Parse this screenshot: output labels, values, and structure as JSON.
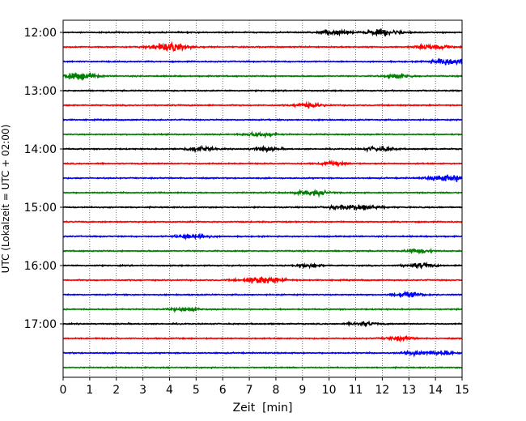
{
  "chart_data": {
    "type": "line",
    "xlabel": "Zeit  [min]",
    "ylabel": "UTC (Lokalzeit = UTC + 02:00)",
    "xlim": [
      0,
      15
    ],
    "x_ticks": [
      "0",
      "1",
      "2",
      "3",
      "4",
      "5",
      "6",
      "7",
      "8",
      "9",
      "10",
      "11",
      "12",
      "13",
      "14",
      "15"
    ],
    "y_ticks": [
      "12:00",
      "13:00",
      "14:00",
      "15:00",
      "16:00",
      "17:00"
    ],
    "grid": "vertical dotted",
    "colors": [
      "#000000",
      "#ff0000",
      "#0000ff",
      "#008000"
    ],
    "trace_start_times": [
      "12:00",
      "12:15",
      "12:30",
      "12:45",
      "13:00",
      "13:15",
      "13:30",
      "13:45",
      "14:00",
      "14:15",
      "14:30",
      "14:45",
      "15:00",
      "15:15",
      "15:30",
      "15:45",
      "16:00",
      "16:15",
      "16:30",
      "16:45",
      "17:00",
      "17:15",
      "17:30",
      "17:45"
    ],
    "events": [
      {
        "trace": 0,
        "t": 10.2,
        "amp": 0.5
      },
      {
        "trace": 0,
        "t": 12.1,
        "amp": 0.7
      },
      {
        "trace": 1,
        "t": 4.0,
        "amp": 0.9
      },
      {
        "trace": 1,
        "t": 13.9,
        "amp": 0.6
      },
      {
        "trace": 2,
        "t": 14.6,
        "amp": 0.8
      },
      {
        "trace": 3,
        "t": 0.4,
        "amp": 0.9
      },
      {
        "trace": 3,
        "t": 12.6,
        "amp": 0.4
      },
      {
        "trace": 5,
        "t": 9.2,
        "amp": 0.5
      },
      {
        "trace": 7,
        "t": 7.4,
        "amp": 0.5
      },
      {
        "trace": 8,
        "t": 5.1,
        "amp": 0.5
      },
      {
        "trace": 8,
        "t": 7.6,
        "amp": 0.4
      },
      {
        "trace": 8,
        "t": 11.9,
        "amp": 0.5
      },
      {
        "trace": 9,
        "t": 10.2,
        "amp": 0.4
      },
      {
        "trace": 10,
        "t": 14.5,
        "amp": 0.8
      },
      {
        "trace": 11,
        "t": 9.4,
        "amp": 0.6
      },
      {
        "trace": 12,
        "t": 11.3,
        "amp": 0.6
      },
      {
        "trace": 12,
        "t": 10.4,
        "amp": 0.4
      },
      {
        "trace": 14,
        "t": 4.9,
        "amp": 0.6
      },
      {
        "trace": 15,
        "t": 13.4,
        "amp": 0.4
      },
      {
        "trace": 16,
        "t": 9.3,
        "amp": 0.4
      },
      {
        "trace": 16,
        "t": 13.4,
        "amp": 0.5
      },
      {
        "trace": 17,
        "t": 7.5,
        "amp": 0.9
      },
      {
        "trace": 18,
        "t": 13.0,
        "amp": 0.5
      },
      {
        "trace": 19,
        "t": 4.6,
        "amp": 0.4
      },
      {
        "trace": 20,
        "t": 11.3,
        "amp": 0.4
      },
      {
        "trace": 21,
        "t": 12.6,
        "amp": 0.4
      },
      {
        "trace": 22,
        "t": 13.3,
        "amp": 0.4
      },
      {
        "trace": 22,
        "t": 14.3,
        "amp": 0.4
      }
    ]
  }
}
